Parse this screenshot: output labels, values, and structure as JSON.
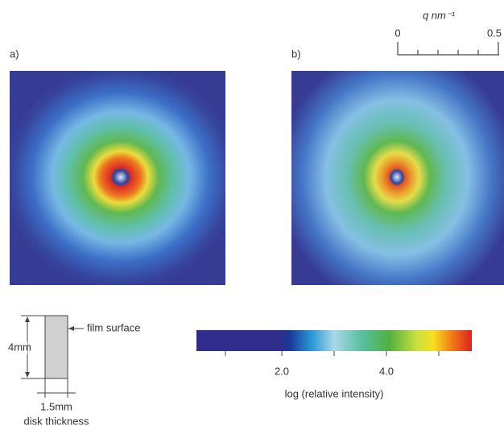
{
  "panels": {
    "a": {
      "label": "a)"
    },
    "b": {
      "label": "b)"
    }
  },
  "scale_bar": {
    "label": "q nm⁻¹",
    "ticks": [
      "0",
      "0.5"
    ]
  },
  "colorbar": {
    "ticks": [
      "2.0",
      "4.0"
    ],
    "label": "log (relative intensity)"
  },
  "sample": {
    "surface": "film surface",
    "height": "4mm",
    "width": "1.5mm",
    "caption": "disk thickness"
  }
}
